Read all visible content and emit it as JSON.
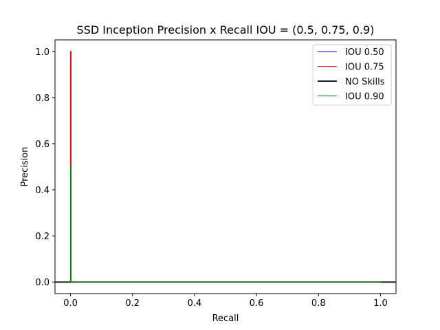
{
  "chart_data": {
    "type": "line",
    "title": "SSD Inception Precision x Recall  IOU = (0.5, 0.75, 0.9)",
    "xlabel": "Recall",
    "ylabel": "Precision",
    "xlim": [
      -0.05,
      1.05
    ],
    "ylim": [
      -0.05,
      1.05
    ],
    "xticks": [
      0.0,
      0.2,
      0.4,
      0.6,
      0.8,
      1.0
    ],
    "xtick_labels": [
      "0.0",
      "0.2",
      "0.4",
      "0.6",
      "0.8",
      "1.0"
    ],
    "yticks": [
      0.0,
      0.2,
      0.4,
      0.6,
      0.8,
      1.0
    ],
    "ytick_labels": [
      "0.0",
      "0.2",
      "0.4",
      "0.6",
      "0.8",
      "1.0"
    ],
    "grid": false,
    "legend_position": "top-right",
    "series": [
      {
        "name": "IOU 0.50",
        "color": "#0000ff",
        "stroke": "thin",
        "x": [
          0.0,
          0.0,
          0.002,
          0.002,
          1.0
        ],
        "y": [
          0.0,
          1.0,
          1.0,
          0.0,
          0.0
        ]
      },
      {
        "name": "IOU 0.75",
        "color": "#ff0000",
        "stroke": "thin",
        "x": [
          0.0,
          0.0,
          0.002,
          0.002,
          1.0
        ],
        "y": [
          0.0,
          1.0,
          1.0,
          0.0,
          0.0
        ]
      },
      {
        "name": "NO Skills",
        "color": "#000000",
        "stroke": "thick",
        "hline": 0.0
      },
      {
        "name": "IOU 0.90",
        "color": "#008000",
        "stroke": "thin",
        "x": [
          0.0,
          0.0,
          0.002,
          0.002,
          1.0
        ],
        "y": [
          0.0,
          0.5,
          0.5,
          0.0,
          0.0
        ]
      }
    ]
  }
}
